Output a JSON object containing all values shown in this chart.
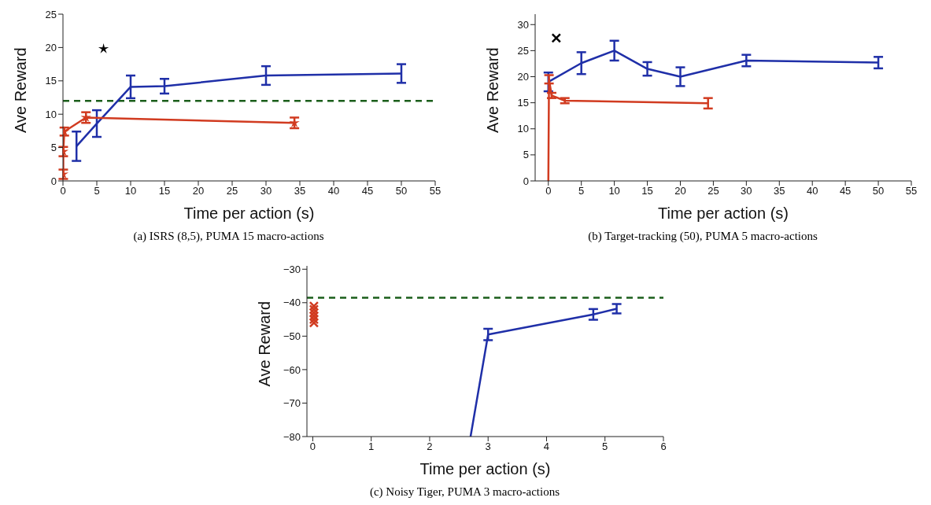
{
  "chart_data": [
    {
      "type": "line",
      "title": "(a)  ISRS (8,5), PUMA 15 macro-actions",
      "xlabel": "Time per action (s)",
      "ylabel": "Ave Reward",
      "xlim": [
        0,
        55
      ],
      "xticks": [
        0,
        5,
        10,
        15,
        20,
        25,
        30,
        35,
        40,
        45,
        50,
        55
      ],
      "ylim": [
        0,
        25
      ],
      "yticks": [
        0,
        5,
        10,
        15,
        20,
        25
      ],
      "grid": false,
      "legend": false,
      "series": [
        {
          "color": "#1f2fa8",
          "x": [
            2,
            5,
            10,
            15,
            30,
            50
          ],
          "values": [
            5.2,
            8.6,
            14.1,
            14.2,
            15.8,
            16.1
          ],
          "errors": [
            2.2,
            2,
            1.7,
            1.1,
            1.4,
            1.4
          ],
          "marker": "none",
          "line_style": "solid"
        },
        {
          "color": "#d13b20",
          "x": [
            0.05,
            0.05,
            0.2,
            3.4,
            34.2
          ],
          "values": [
            1,
            4.4,
            7.4,
            9.5,
            8.7
          ],
          "errors": [
            0.7,
            0.7,
            0.6,
            0.8,
            0.8
          ],
          "marker": "star",
          "line_style": "solid"
        },
        {
          "type": "scatter",
          "color": "#000000",
          "x": [
            6
          ],
          "values": [
            19.8
          ],
          "marker": "star"
        }
      ],
      "ref_lines": [
        {
          "axis": "y",
          "value": 12,
          "color": "#1a5e1a",
          "line_style": "dashed"
        }
      ]
    },
    {
      "type": "line",
      "title": "(b)  Target-tracking (50), PUMA 5 macro-actions",
      "xlabel": "Time per action (s)",
      "ylabel": "Ave Reward",
      "xlim": [
        -2,
        55
      ],
      "xticks": [
        0,
        5,
        10,
        15,
        20,
        25,
        30,
        35,
        40,
        45,
        50,
        55
      ],
      "ylim": [
        0,
        32
      ],
      "yticks": [
        0,
        5,
        10,
        15,
        20,
        25,
        30
      ],
      "grid": false,
      "legend": false,
      "series": [
        {
          "color": "#1f2fa8",
          "x": [
            0,
            5,
            10,
            15,
            20,
            30,
            50
          ],
          "values": [
            19,
            22.6,
            25,
            21.5,
            20,
            23.1,
            22.7
          ],
          "errors": [
            1.8,
            2.1,
            1.9,
            1.3,
            1.8,
            1.1,
            1.1
          ],
          "marker": "none",
          "line_style": "solid"
        },
        {
          "color": "#d13b20",
          "x": [
            0,
            0.1,
            0.5,
            2.5,
            24.2
          ],
          "values": [
            0,
            19.5,
            16.4,
            15.4,
            14.9
          ],
          "errors": [
            0,
            0.8,
            0.5,
            0.5,
            1
          ],
          "marker": "none",
          "line_style": "solid"
        },
        {
          "type": "scatter",
          "color": "#000000",
          "x": [
            1.2
          ],
          "values": [
            27.4
          ],
          "marker": "cross"
        }
      ]
    },
    {
      "type": "line",
      "title": "(c)  Noisy Tiger, PUMA 3 macro-actions",
      "xlabel": "Time per action (s)",
      "ylabel": "Ave Reward",
      "xlim": [
        -0.1,
        6
      ],
      "xticks": [
        0,
        1,
        2,
        3,
        4,
        5,
        6
      ],
      "ylim": [
        -80,
        -29
      ],
      "yticks": [
        -80,
        -70,
        -60,
        -50,
        -40,
        -30
      ],
      "grid": false,
      "legend": false,
      "series": [
        {
          "color": "#1f2fa8",
          "x": [
            2.7,
            3,
            4.8,
            5.2
          ],
          "values": [
            -80,
            -49.5,
            -43.5,
            -41.8
          ],
          "errors": [
            0,
            1.7,
            1.6,
            1.4
          ],
          "marker": "none",
          "line_style": "solid"
        },
        {
          "type": "scatter",
          "color": "#d13b20",
          "x": [
            0.02,
            0.02,
            0.02,
            0.02,
            0.02,
            0.02
          ],
          "values": [
            -41,
            -42,
            -43,
            -44,
            -45,
            -46
          ],
          "marker": "cross"
        }
      ],
      "ref_lines": [
        {
          "axis": "y",
          "value": -38.5,
          "color": "#1a5e1a",
          "line_style": "dashed"
        }
      ]
    }
  ]
}
